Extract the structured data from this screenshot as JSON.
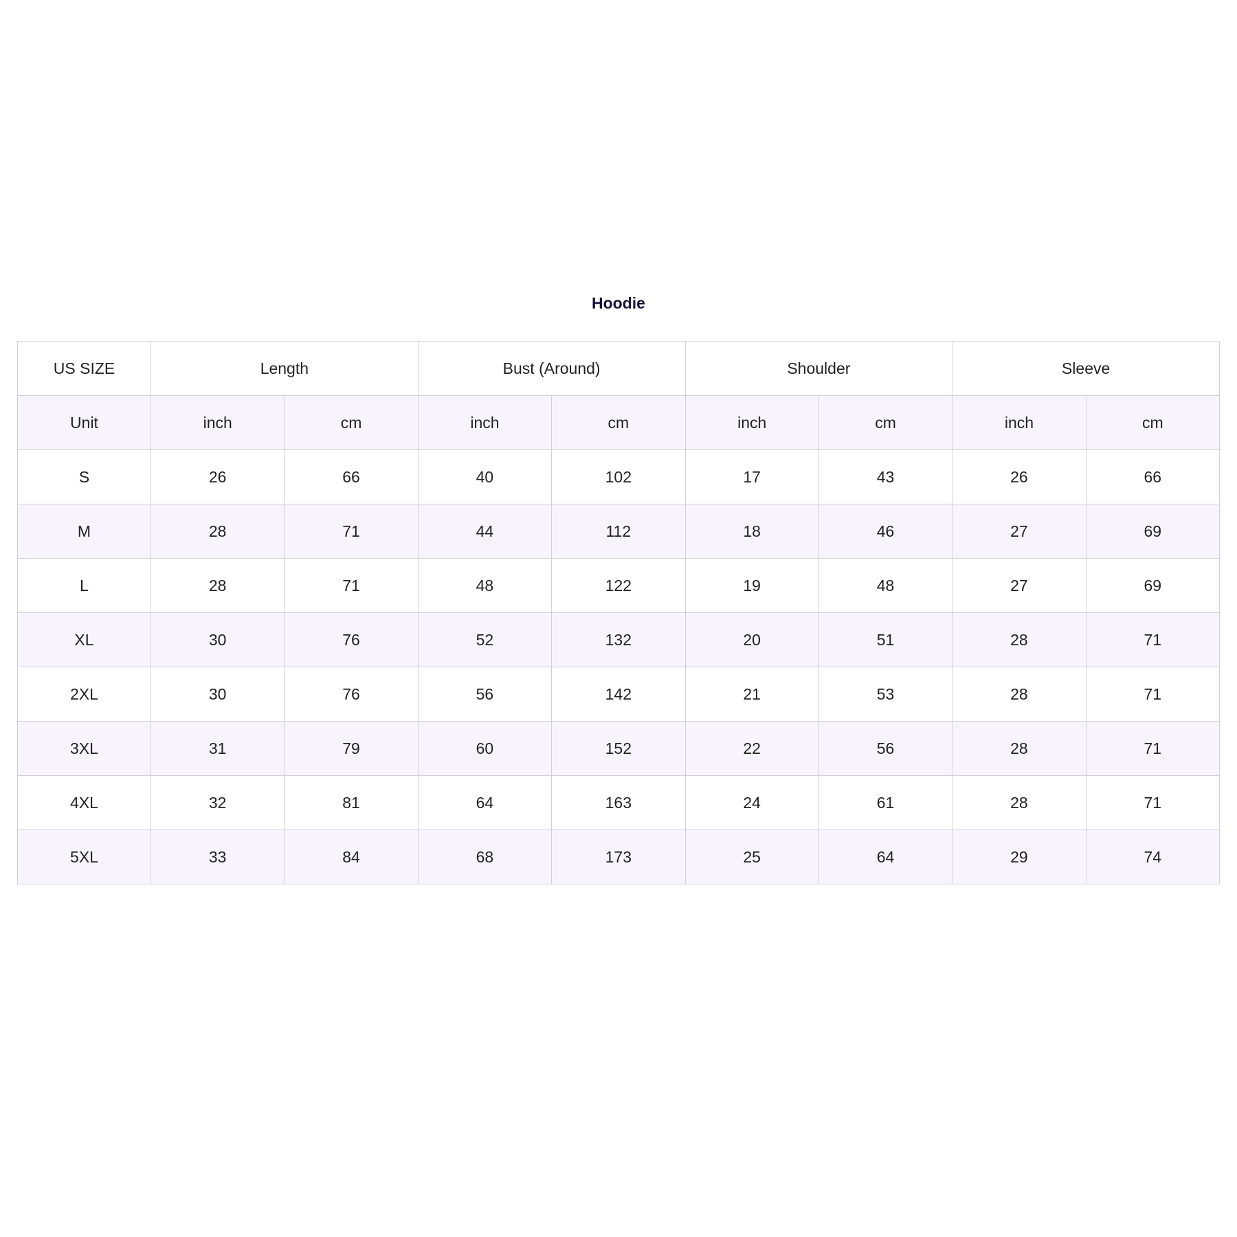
{
  "title": "Hoodie",
  "table": {
    "size_header": "US SIZE",
    "groups": [
      "Length",
      "Bust (Around)",
      "Shoulder",
      "Sleeve"
    ],
    "unit_label": "Unit",
    "units": [
      "inch",
      "cm",
      "inch",
      "cm",
      "inch",
      "cm",
      "inch",
      "cm"
    ],
    "rows": [
      {
        "size": "S",
        "values": [
          "26",
          "66",
          "40",
          "102",
          "17",
          "43",
          "26",
          "66"
        ]
      },
      {
        "size": "M",
        "values": [
          "28",
          "71",
          "44",
          "112",
          "18",
          "46",
          "27",
          "69"
        ]
      },
      {
        "size": "L",
        "values": [
          "28",
          "71",
          "48",
          "122",
          "19",
          "48",
          "27",
          "69"
        ]
      },
      {
        "size": "XL",
        "values": [
          "30",
          "76",
          "52",
          "132",
          "20",
          "51",
          "28",
          "71"
        ]
      },
      {
        "size": "2XL",
        "values": [
          "30",
          "76",
          "56",
          "142",
          "21",
          "53",
          "28",
          "71"
        ]
      },
      {
        "size": "3XL",
        "values": [
          "31",
          "79",
          "60",
          "152",
          "22",
          "56",
          "28",
          "71"
        ]
      },
      {
        "size": "4XL",
        "values": [
          "32",
          "81",
          "64",
          "163",
          "24",
          "61",
          "28",
          "71"
        ]
      },
      {
        "size": "5XL",
        "values": [
          "33",
          "84",
          "68",
          "173",
          "25",
          "64",
          "29",
          "74"
        ]
      }
    ]
  },
  "colors": {
    "stripe": "#f8f4fd",
    "border": "#d2d0d4",
    "title": "#14143a"
  }
}
